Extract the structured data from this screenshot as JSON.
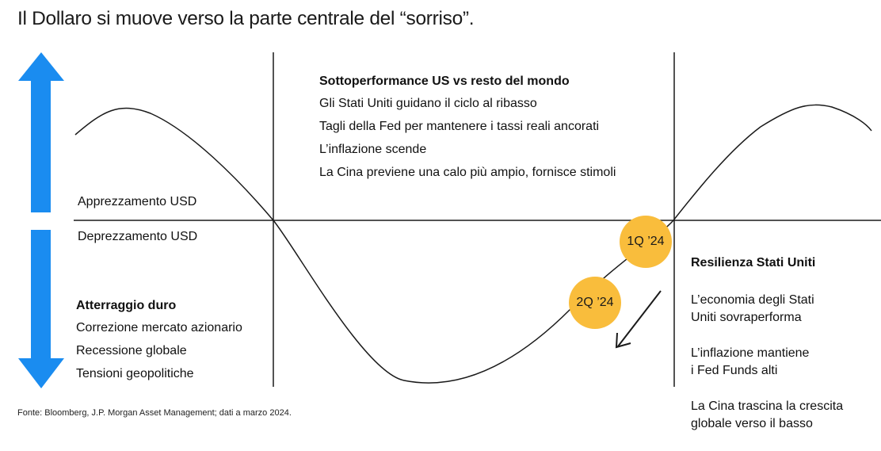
{
  "title": "Il Dollaro si muove verso la parte centrale del “sorriso”.",
  "axis": {
    "appreciation": "Apprezzamento USD",
    "depreciation": "Deprezzamento USD"
  },
  "colors": {
    "arrow": "#1a8cf0",
    "badge": "#f9bd3c",
    "line": "#1a1a1a"
  },
  "phases": {
    "left": {
      "heading": "Atterraggio duro",
      "items": [
        "Correzione mercato azionario",
        "Recessione globale",
        "Tensioni geopolitiche"
      ]
    },
    "middle": {
      "heading": "Sottoperformance US vs resto del mondo",
      "items": [
        "Gli Stati Uniti guidano il ciclo al ribasso",
        "Tagli della Fed per mantenere i tassi reali ancorati",
        "L’inflazione scende",
        "La Cina previene una calo più ampio, fornisce stimoli"
      ]
    },
    "right": {
      "heading": "Resilienza Stati Uniti",
      "items": [
        "L’economia degli Stati\nUniti sovraperforma",
        "L’inflazione mantiene\ni Fed Funds alti",
        "La Cina trascina la crescita\nglobale verso il basso"
      ]
    }
  },
  "markers": [
    "1Q ’24",
    "2Q ’24"
  ],
  "source": "Fonte: Bloomberg, J.P. Morgan Asset Management; dati a marzo 2024."
}
